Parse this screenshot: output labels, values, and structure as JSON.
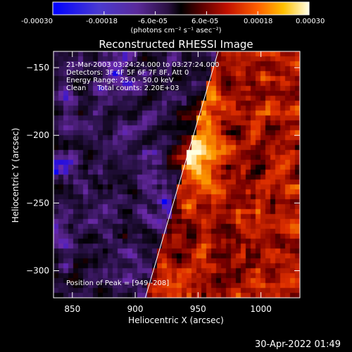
{
  "colorbar": {
    "tick_labels": [
      "-0.00030",
      "-0.00018",
      "-6.0e-05",
      "6.0e-05",
      "0.00018",
      "0.00030"
    ],
    "unit_label": "(photons cm⁻² s⁻¹ asec⁻²)",
    "range": [
      -0.0003,
      0.0003
    ]
  },
  "chart_data": {
    "type": "heatmap",
    "title": "Reconstructed RHESSI Image",
    "xlabel": "Heliocentric X (arcsec)",
    "ylabel": "Heliocentric Y (arcsec)",
    "xlim": [
      835,
      1031
    ],
    "ylim": [
      -320,
      -138
    ],
    "x_ticks": [
      850,
      900,
      950,
      1000
    ],
    "x_tick_labels": [
      "850",
      "900",
      "950",
      "1000"
    ],
    "y_ticks": [
      -150,
      -200,
      -250,
      -300
    ],
    "y_tick_labels": [
      "−150",
      "−200",
      "−250",
      "−300"
    ],
    "limb_line": {
      "x": [
        908,
        966
      ],
      "y": [
        -320,
        -138
      ]
    },
    "peak": {
      "x": 949,
      "y": -208
    },
    "colormap": [
      "#0000ff",
      "#6a2aa8",
      "#2a1248",
      "#000000",
      "#7a0000",
      "#e03000",
      "#ffa000",
      "#ffffe0"
    ]
  },
  "info": {
    "line1": "21-Mar-2003 03:24:24.000 to 03:27:24.000",
    "line2": "Detectors: 3F 4F 5F 6F 7F 8F, Att 0",
    "line3": "Energy Range: 25.0 - 50.0 keV",
    "line4": "Clean     Total counts: 2.20E+03",
    "peak_text": "Position of Peak = [949,-208]"
  },
  "footer": {
    "timestamp": "30-Apr-2022 01:49"
  }
}
